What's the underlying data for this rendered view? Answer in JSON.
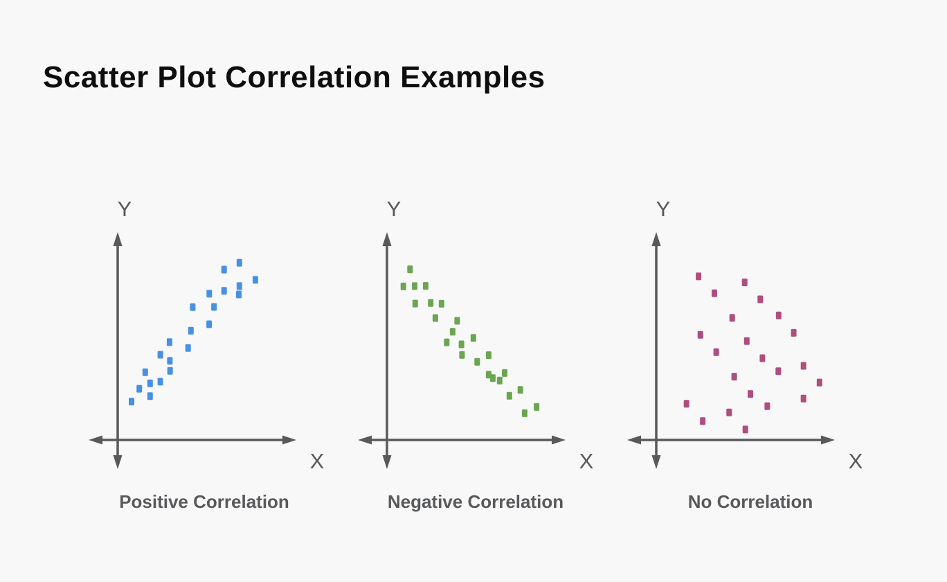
{
  "title": "Scatter Plot Correlation Examples",
  "colors": {
    "background": "#f8f8f9",
    "axis": "#58595a",
    "title_text": "#0e0e0e",
    "caption_text": "#58595b",
    "positive_points": "#4890e2",
    "negative_points": "#6ba552",
    "none_points": "#b04d7f"
  },
  "chart_data": [
    {
      "type": "scatter",
      "title": "Positive Correlation",
      "correlation": "positive",
      "x_axis_label": "X",
      "y_axis_label": "Y",
      "color": "#4890e2",
      "axis_range": [
        0,
        100
      ],
      "grid": false,
      "legend": "none",
      "points": [
        [
          7.7,
          19.1
        ],
        [
          12.0,
          25.5
        ],
        [
          18.0,
          21.8
        ],
        [
          18.0,
          28.2
        ],
        [
          15.3,
          33.7
        ],
        [
          23.7,
          29.0
        ],
        [
          23.7,
          42.4
        ],
        [
          29.1,
          34.4
        ],
        [
          29.0,
          39.4
        ],
        [
          28.8,
          48.7
        ],
        [
          40.7,
          54.4
        ],
        [
          39.1,
          45.8
        ],
        [
          41.7,
          66.1
        ],
        [
          50.8,
          57.6
        ],
        [
          50.9,
          72.8
        ],
        [
          53.5,
          66.2
        ],
        [
          59.1,
          74.2
        ],
        [
          59.1,
          84.8
        ],
        [
          67.3,
          72.4
        ],
        [
          67.6,
          76.6
        ],
        [
          67.6,
          88.2
        ],
        [
          76.5,
          79.7
        ]
      ]
    },
    {
      "type": "scatter",
      "title": "Negative Correlation",
      "correlation": "negative",
      "x_axis_label": "X",
      "y_axis_label": "Y",
      "color": "#6ba552",
      "axis_range": [
        0,
        100
      ],
      "grid": false,
      "legend": "none",
      "points": [
        [
          12.8,
          84.9
        ],
        [
          9.1,
          76.4
        ],
        [
          15.4,
          76.6
        ],
        [
          21.5,
          76.7
        ],
        [
          15.7,
          67.9
        ],
        [
          24.3,
          68.2
        ],
        [
          30.3,
          67.8
        ],
        [
          26.9,
          60.7
        ],
        [
          39.0,
          59.3
        ],
        [
          36.5,
          53.9
        ],
        [
          33.2,
          48.6
        ],
        [
          41.4,
          47.6
        ],
        [
          48.0,
          50.8
        ],
        [
          41.7,
          42.3
        ],
        [
          50.1,
          38.9
        ],
        [
          56.5,
          42.2
        ],
        [
          56.5,
          32.5
        ],
        [
          58.8,
          30.8
        ],
        [
          62.6,
          29.6
        ],
        [
          65.4,
          33.3
        ],
        [
          74.1,
          24.9
        ],
        [
          68.0,
          22.0
        ],
        [
          83.1,
          16.4
        ],
        [
          76.5,
          13.3
        ]
      ]
    },
    {
      "type": "scatter",
      "title": "No Correlation",
      "correlation": "none",
      "x_axis_label": "X",
      "y_axis_label": "Y",
      "color": "#b04d7f",
      "axis_range": [
        0,
        100
      ],
      "grid": false,
      "legend": "none",
      "points": [
        [
          23.5,
          81.4
        ],
        [
          49.1,
          78.4
        ],
        [
          32.3,
          73.0
        ],
        [
          57.8,
          70.0
        ],
        [
          68.0,
          62.0
        ],
        [
          42.2,
          60.8
        ],
        [
          76.4,
          53.3
        ],
        [
          24.5,
          52.3
        ],
        [
          50.3,
          49.2
        ],
        [
          33.3,
          43.7
        ],
        [
          59.0,
          40.7
        ],
        [
          81.8,
          36.9
        ],
        [
          67.8,
          34.2
        ],
        [
          43.3,
          31.5
        ],
        [
          90.7,
          28.6
        ],
        [
          52.3,
          22.9
        ],
        [
          81.8,
          20.6
        ],
        [
          16.8,
          18.0
        ],
        [
          61.7,
          16.8
        ],
        [
          40.5,
          13.7
        ],
        [
          25.8,
          9.4
        ],
        [
          49.5,
          5.2
        ]
      ]
    }
  ]
}
